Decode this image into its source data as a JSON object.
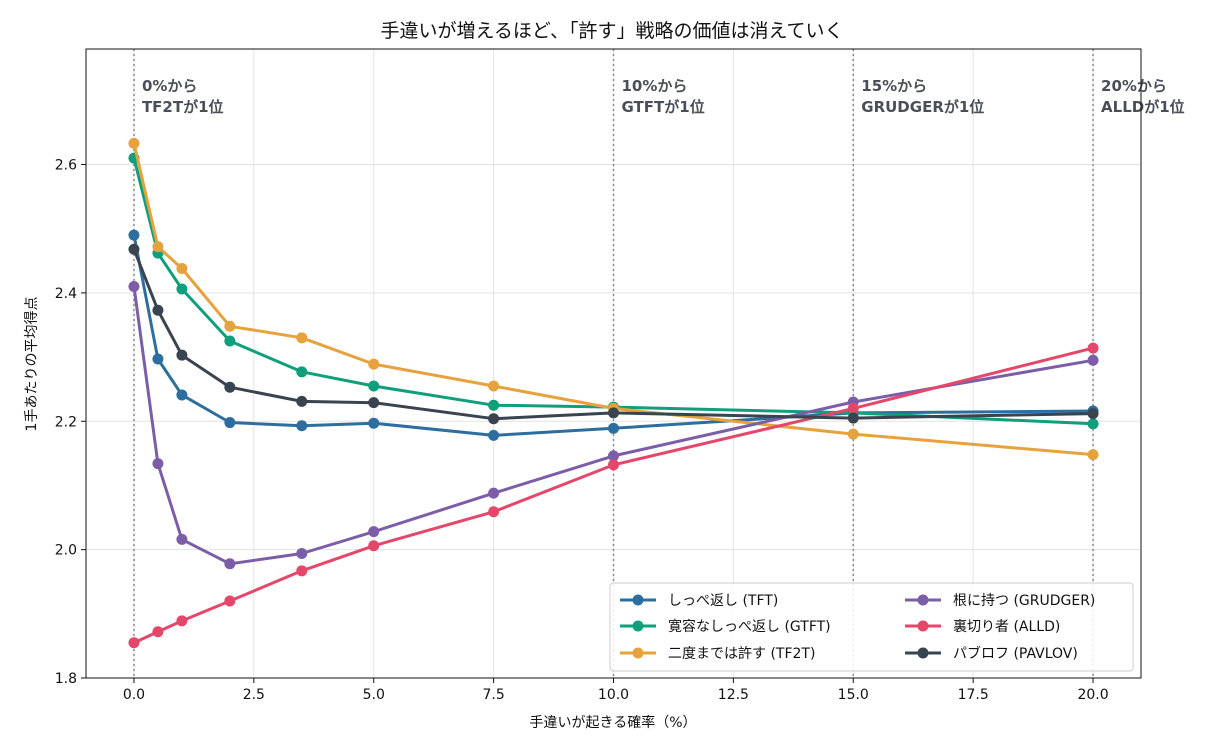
{
  "chart_data": {
    "type": "line",
    "title": "手違いが増えるほど、「許す」戦略の価値は消えていく",
    "xlabel": "手違いが起きる確率（%）",
    "ylabel": "1手あたりの平均得点",
    "xlim": [
      -1.0,
      21.0
    ],
    "ylim": [
      1.8,
      2.78
    ],
    "xticks": [
      0.0,
      2.5,
      5.0,
      7.5,
      10.0,
      12.5,
      15.0,
      17.5,
      20.0
    ],
    "xtick_labels": [
      "0.0",
      "2.5",
      "5.0",
      "7.5",
      "10.0",
      "12.5",
      "15.0",
      "17.5",
      "20.0"
    ],
    "yticks": [
      1.8,
      2.0,
      2.2,
      2.4,
      2.6
    ],
    "ytick_labels": [
      "1.8",
      "2.0",
      "2.2",
      "2.4",
      "2.6"
    ],
    "grid": true,
    "legend_position": "bottom-right",
    "x": [
      0,
      0.5,
      1,
      2,
      3.5,
      5,
      7.5,
      10,
      15,
      20
    ],
    "series": [
      {
        "name": "しっぺ返し (TFT)",
        "color": "#2e6e9e",
        "values": [
          2.49,
          2.297,
          2.241,
          2.198,
          2.193,
          2.197,
          2.178,
          2.189,
          2.213,
          2.216
        ]
      },
      {
        "name": "寛容なしっぺ返し (GTFT)",
        "color": "#0f9f7a",
        "values": [
          2.61,
          2.462,
          2.406,
          2.325,
          2.277,
          2.255,
          2.225,
          2.222,
          2.213,
          2.196
        ]
      },
      {
        "name": "二度までは許す (TF2T)",
        "color": "#e6a23c",
        "values": [
          2.633,
          2.472,
          2.438,
          2.348,
          2.33,
          2.289,
          2.255,
          2.22,
          2.18,
          2.148
        ]
      },
      {
        "name": "根に持つ (GRUDGER)",
        "color": "#7b5ea7",
        "values": [
          2.41,
          2.134,
          2.016,
          1.978,
          1.994,
          2.028,
          2.088,
          2.146,
          2.23,
          2.295
        ]
      },
      {
        "name": "裏切り者 (ALLD)",
        "color": "#e5476b",
        "values": [
          1.855,
          1.872,
          1.889,
          1.92,
          1.967,
          2.006,
          2.059,
          2.132,
          2.22,
          2.314
        ]
      },
      {
        "name": "パブロフ (PAVLOV)",
        "color": "#3a4350",
        "values": [
          2.468,
          2.373,
          2.303,
          2.253,
          2.231,
          2.229,
          2.204,
          2.213,
          2.205,
          2.212
        ]
      }
    ],
    "vlines": [
      {
        "x": 0,
        "line1": "0%から",
        "line2": "TF2Tが1位"
      },
      {
        "x": 10,
        "line1": "10%から",
        "line2": "GTFTが1位"
      },
      {
        "x": 15,
        "line1": "15%から",
        "line2": "GRUDGERが1位"
      },
      {
        "x": 20,
        "line1": "20%から",
        "line2": "ALLDが1位"
      }
    ]
  }
}
